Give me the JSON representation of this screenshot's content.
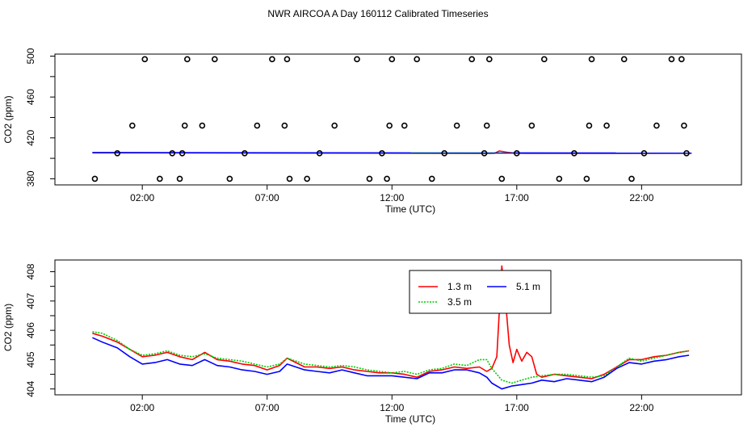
{
  "title": "NWR AIRCOA A  Day 160112  Calibrated Timeseries",
  "chart_data": [
    {
      "type": "scatter",
      "xlabel": "Time (UTC)",
      "ylabel": "CO2 (ppm)",
      "xlim": [
        -1.5,
        26.0
      ],
      "ylim": [
        374,
        502
      ],
      "x_tick_values": [
        2,
        7,
        12,
        17,
        22
      ],
      "x_tick_labels": [
        "02:00",
        "07:00",
        "12:00",
        "17:00",
        "22:00"
      ],
      "y_tick_values": [
        380,
        420,
        460,
        500
      ],
      "y_tick_labels": [
        "380",
        "420",
        "460",
        "500"
      ],
      "grid": false,
      "points": {
        "x": [
          0.1,
          1.0,
          1.6,
          2.1,
          2.7,
          3.2,
          3.5,
          3.6,
          3.7,
          3.8,
          4.4,
          4.9,
          5.5,
          6.1,
          6.6,
          7.2,
          7.7,
          7.8,
          7.9,
          8.6,
          9.1,
          9.7,
          10.6,
          11.1,
          11.6,
          11.8,
          11.9,
          12.0,
          12.5,
          13.0,
          13.6,
          14.1,
          14.6,
          15.2,
          15.7,
          15.8,
          15.9,
          16.4,
          17.0,
          17.6,
          18.1,
          18.7,
          19.3,
          19.8,
          19.9,
          20.0,
          20.6,
          21.3,
          21.6,
          22.1,
          22.6,
          23.2,
          23.6,
          23.7,
          23.8
        ],
        "y": [
          380,
          405,
          432,
          497,
          380,
          405,
          380,
          405,
          432,
          497,
          432,
          497,
          380,
          405,
          432,
          497,
          432,
          497,
          380,
          380,
          405,
          432,
          497,
          380,
          405,
          380,
          432,
          497,
          432,
          497,
          380,
          405,
          432,
          497,
          405,
          432,
          497,
          380,
          405,
          432,
          497,
          380,
          405,
          380,
          432,
          497,
          432,
          497,
          380,
          405,
          432,
          497,
          497,
          432,
          405
        ]
      },
      "series": [
        {
          "name": "1.3 m",
          "color": "#ff0000",
          "x": [
            0,
            15.8,
            16.1,
            16.3,
            16.6,
            17.0,
            17.4,
            24.0
          ],
          "y": [
            405.6,
            404.8,
            405.0,
            407.2,
            406.0,
            405.0,
            404.8,
            405.0
          ]
        },
        {
          "name": "3.5 m",
          "color": "#00cc00",
          "x": [
            0,
            24.0
          ],
          "y": [
            405.4,
            405.1
          ]
        },
        {
          "name": "5.1 m",
          "color": "#0000ff",
          "x": [
            0,
            24.0
          ],
          "y": [
            405.5,
            405.1
          ]
        }
      ]
    },
    {
      "type": "line",
      "xlabel": "Time (UTC)",
      "ylabel": "CO2 (ppm)",
      "xlim": [
        -1.5,
        26.0
      ],
      "ylim": [
        403.8,
        408.4
      ],
      "x_tick_values": [
        2,
        7,
        12,
        17,
        22
      ],
      "x_tick_labels": [
        "02:00",
        "07:00",
        "12:00",
        "17:00",
        "22:00"
      ],
      "y_tick_values": [
        404,
        405,
        406,
        407,
        408
      ],
      "y_tick_labels": [
        "404",
        "405",
        "406",
        "407",
        "408"
      ],
      "grid": false,
      "legend": {
        "placement": "top-center",
        "entries": [
          "1.3 m",
          "5.1 m",
          "3.5 m"
        ]
      },
      "series": [
        {
          "name": "1.3 m",
          "color": "#ff0000",
          "line_style": "solid",
          "x": [
            0.0,
            0.4,
            1.0,
            1.5,
            2.0,
            2.5,
            3.0,
            3.5,
            4.0,
            4.5,
            5.0,
            5.5,
            6.0,
            6.5,
            7.0,
            7.5,
            7.8,
            8.5,
            9.0,
            9.5,
            10.0,
            10.5,
            11.0,
            11.5,
            12.0,
            12.5,
            13.0,
            13.5,
            14.0,
            14.5,
            15.0,
            15.5,
            15.8,
            16.0,
            16.2,
            16.4,
            16.55,
            16.7,
            16.85,
            17.0,
            17.2,
            17.4,
            17.6,
            17.8,
            18.0,
            18.5,
            19.0,
            19.5,
            20.0,
            20.5,
            21.0,
            21.5,
            22.0,
            22.5,
            23.0,
            23.5,
            23.9
          ],
          "y": [
            405.9,
            405.8,
            405.6,
            405.35,
            405.1,
            405.15,
            405.25,
            405.1,
            405.0,
            405.25,
            405.0,
            404.95,
            404.85,
            404.8,
            404.65,
            404.8,
            405.05,
            404.75,
            404.75,
            404.7,
            404.75,
            404.65,
            404.6,
            404.55,
            404.55,
            404.5,
            404.4,
            404.6,
            404.65,
            404.75,
            404.7,
            404.75,
            404.6,
            404.7,
            405.1,
            408.2,
            407.0,
            405.5,
            404.9,
            405.35,
            404.95,
            405.25,
            405.1,
            404.5,
            404.4,
            404.5,
            404.45,
            404.4,
            404.35,
            404.5,
            404.75,
            405.0,
            405.0,
            405.1,
            405.15,
            405.25,
            405.3
          ]
        },
        {
          "name": "3.5 m",
          "color": "#00cc00",
          "line_style": "dotted",
          "x": [
            0.0,
            0.4,
            1.0,
            1.5,
            2.0,
            2.5,
            3.0,
            3.5,
            4.0,
            4.5,
            5.0,
            5.5,
            6.0,
            6.5,
            7.0,
            7.5,
            7.8,
            8.5,
            9.0,
            9.5,
            10.0,
            10.5,
            11.0,
            11.5,
            12.0,
            12.5,
            13.0,
            13.5,
            14.0,
            14.5,
            15.0,
            15.5,
            15.8,
            16.0,
            16.4,
            16.8,
            17.2,
            17.6,
            18.0,
            18.5,
            19.0,
            19.5,
            20.0,
            20.5,
            21.0,
            21.5,
            22.0,
            22.5,
            23.0,
            23.5,
            23.9
          ],
          "y": [
            405.95,
            405.9,
            405.65,
            405.35,
            405.15,
            405.2,
            405.3,
            405.15,
            405.1,
            405.2,
            405.05,
            405.0,
            404.95,
            404.85,
            404.75,
            404.85,
            405.05,
            404.85,
            404.8,
            404.75,
            404.8,
            404.75,
            404.65,
            404.6,
            404.55,
            404.6,
            404.5,
            404.65,
            404.7,
            404.85,
            404.8,
            405.0,
            405.0,
            404.7,
            404.3,
            404.2,
            404.3,
            404.4,
            404.45,
            404.5,
            404.5,
            404.45,
            404.4,
            404.45,
            404.75,
            405.05,
            404.95,
            405.05,
            405.15,
            405.25,
            405.3
          ]
        },
        {
          "name": "5.1 m",
          "color": "#0000ff",
          "line_style": "solid",
          "x": [
            0.0,
            0.4,
            1.0,
            1.5,
            2.0,
            2.5,
            3.0,
            3.5,
            4.0,
            4.5,
            5.0,
            5.5,
            6.0,
            6.5,
            7.0,
            7.5,
            7.8,
            8.5,
            9.0,
            9.5,
            10.0,
            10.5,
            11.0,
            11.5,
            12.0,
            12.5,
            13.0,
            13.5,
            14.0,
            14.5,
            15.0,
            15.5,
            15.8,
            16.0,
            16.4,
            16.8,
            17.2,
            17.6,
            18.0,
            18.5,
            19.0,
            19.5,
            20.0,
            20.5,
            21.0,
            21.5,
            22.0,
            22.5,
            23.0,
            23.5,
            23.9
          ],
          "y": [
            405.75,
            405.6,
            405.4,
            405.1,
            404.85,
            404.9,
            405.0,
            404.85,
            404.8,
            405.0,
            404.8,
            404.75,
            404.65,
            404.6,
            404.5,
            404.6,
            404.85,
            404.65,
            404.6,
            404.55,
            404.65,
            404.55,
            404.45,
            404.45,
            404.45,
            404.4,
            404.35,
            404.55,
            404.55,
            404.65,
            404.65,
            404.55,
            404.4,
            404.2,
            404.0,
            404.1,
            404.15,
            404.2,
            404.3,
            404.25,
            404.35,
            404.3,
            404.25,
            404.4,
            404.7,
            404.9,
            404.85,
            404.95,
            405.0,
            405.1,
            405.15
          ]
        }
      ]
    }
  ]
}
